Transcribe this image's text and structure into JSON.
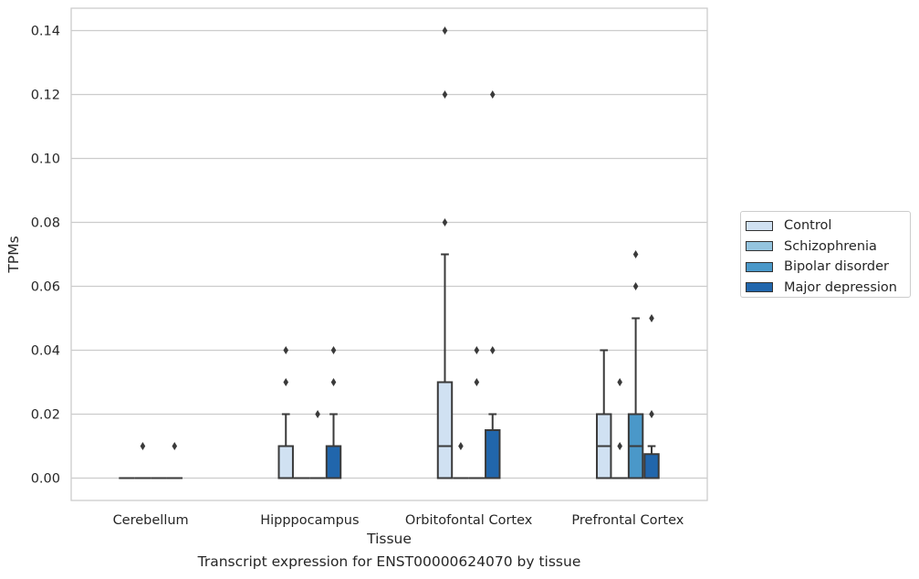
{
  "chart_data": {
    "type": "box",
    "xlabel": "Tissue",
    "ylabel": "TPMs",
    "ylim": [
      -0.007,
      0.147
    ],
    "yticks": [
      0.0,
      0.02,
      0.04,
      0.06,
      0.08,
      0.1,
      0.12,
      0.14
    ],
    "ytick_labels": [
      "0.00",
      "0.02",
      "0.04",
      "0.06",
      "0.08",
      "0.10",
      "0.12",
      "0.14"
    ],
    "grid": true,
    "legend_position": "right",
    "categories": [
      "Cerebellum",
      "Hipppocampus",
      "Orbitofontal Cortex",
      "Prefrontal Cortex"
    ],
    "series": [
      {
        "name": "Control",
        "color": "#d0e1f2",
        "boxes": [
          {
            "min": 0,
            "q1": 0,
            "median": 0,
            "q3": 0,
            "max": 0,
            "outliers": []
          },
          {
            "min": 0,
            "q1": 0,
            "median": 0,
            "q3": 0.01,
            "max": 0.02,
            "outliers": [
              0.03,
              0.04
            ]
          },
          {
            "min": 0,
            "q1": 0,
            "median": 0.01,
            "q3": 0.03,
            "max": 0.07,
            "outliers": [
              0.08,
              0.12,
              0.14
            ]
          },
          {
            "min": 0,
            "q1": 0,
            "median": 0.01,
            "q3": 0.02,
            "max": 0.04,
            "outliers": []
          }
        ]
      },
      {
        "name": "Schizophrenia",
        "color": "#94c4df",
        "boxes": [
          {
            "min": 0,
            "q1": 0,
            "median": 0,
            "q3": 0,
            "max": 0,
            "outliers": [
              0.01
            ]
          },
          {
            "min": 0,
            "q1": 0,
            "median": 0,
            "q3": 0,
            "max": 0,
            "outliers": []
          },
          {
            "min": 0,
            "q1": 0,
            "median": 0,
            "q3": 0,
            "max": 0,
            "outliers": [
              0.01
            ]
          },
          {
            "min": 0,
            "q1": 0,
            "median": 0,
            "q3": 0,
            "max": 0,
            "outliers": [
              0.01,
              0.03
            ]
          }
        ]
      },
      {
        "name": "Bipolar disorder",
        "color": "#4a98c9",
        "boxes": [
          {
            "min": 0,
            "q1": 0,
            "median": 0,
            "q3": 0,
            "max": 0,
            "outliers": []
          },
          {
            "min": 0,
            "q1": 0,
            "median": 0,
            "q3": 0,
            "max": 0,
            "outliers": [
              0.02
            ]
          },
          {
            "min": 0,
            "q1": 0,
            "median": 0,
            "q3": 0,
            "max": 0,
            "outliers": [
              0.03,
              0.04
            ]
          },
          {
            "min": 0,
            "q1": 0,
            "median": 0.01,
            "q3": 0.02,
            "max": 0.05,
            "outliers": [
              0.06,
              0.07
            ]
          }
        ]
      },
      {
        "name": "Major depression",
        "color": "#2166ac",
        "boxes": [
          {
            "min": 0,
            "q1": 0,
            "median": 0,
            "q3": 0,
            "max": 0,
            "outliers": [
              0.01
            ]
          },
          {
            "min": 0,
            "q1": 0,
            "median": 0,
            "q3": 0.01,
            "max": 0.02,
            "outliers": [
              0.03,
              0.04
            ]
          },
          {
            "min": 0,
            "q1": 0,
            "median": 0,
            "q3": 0.015,
            "max": 0.02,
            "outliers": [
              0.04,
              0.12
            ]
          },
          {
            "min": 0,
            "q1": 0,
            "median": 0,
            "q3": 0.0075,
            "max": 0.01,
            "outliers": [
              0.02,
              0.05
            ]
          }
        ]
      }
    ]
  },
  "caption": "Transcript expression for ENST00000624070 by tissue"
}
